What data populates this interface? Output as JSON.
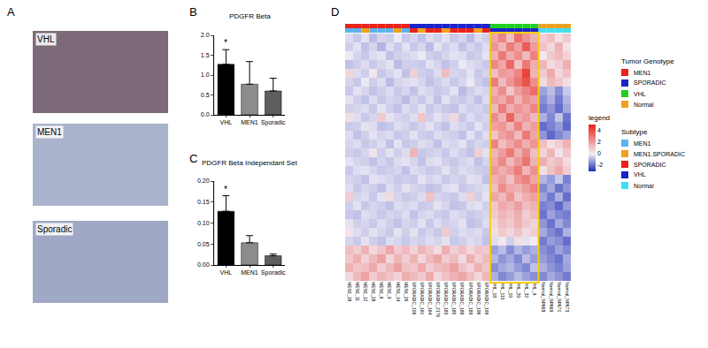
{
  "images": {
    "panel": "A",
    "labels": [
      "VHL",
      "MEN1",
      "Sporadic"
    ]
  },
  "chart_data": [
    {
      "type": "bar",
      "panel": "B",
      "title": "PDGFR Beta",
      "categories": [
        "VHL",
        "MEN1",
        "Sporadic"
      ],
      "values": [
        1.27,
        0.77,
        0.6
      ],
      "errors": [
        0.37,
        0.57,
        0.32
      ],
      "colors": [
        "#000000",
        "#8c8c8c",
        "#5e5e5e"
      ],
      "ylim": [
        0,
        2.0
      ],
      "yticks": [
        {
          "value": 0,
          "label": "0.0"
        },
        {
          "value": 0.5,
          "label": "0.5"
        },
        {
          "value": 1.0,
          "label": "1.0"
        },
        {
          "value": 1.5,
          "label": "1.5"
        },
        {
          "value": 2.0,
          "label": "2.0"
        }
      ],
      "grid": false,
      "annotations": [
        {
          "category": "VHL",
          "text": "*"
        }
      ]
    },
    {
      "type": "bar",
      "panel": "C",
      "title": "PDGFR Beta Independant Set",
      "categories": [
        "VHL",
        "MEN1",
        "Sporadic"
      ],
      "values": [
        0.128,
        0.053,
        0.022
      ],
      "errors": [
        0.037,
        0.017,
        0.004
      ],
      "colors": [
        "#000000",
        "#8c8c8c",
        "#5e5e5e"
      ],
      "ylim": [
        0,
        0.2
      ],
      "yticks": [
        {
          "value": 0,
          "label": "0.00"
        },
        {
          "value": 0.05,
          "label": "0.05"
        },
        {
          "value": 0.1,
          "label": "0.10"
        },
        {
          "value": 0.15,
          "label": "0.15"
        },
        {
          "value": 0.2,
          "label": "0.20"
        }
      ],
      "grid": false,
      "annotations": [
        {
          "category": "VHL",
          "text": "*"
        }
      ]
    },
    {
      "type": "heatmap",
      "panel": "D",
      "columns": [
        "MEN1_18",
        "MEN1_11",
        "MEN1_12",
        "MEN1_28",
        "MEN1_6",
        "MEN1_9",
        "MEN1_14",
        "MEN1_26",
        "SPORADIC_156",
        "SPORADIC_160",
        "SPORADIC_164",
        "SPORADIC_2176",
        "SPORADIC_183",
        "SPORADIC_185",
        "SPORADIC_188",
        "SPORADIC_189",
        "SPORADIC_196",
        "SPORADIC_199",
        "VHL_18",
        "VHL_115",
        "VHL_19",
        "VHL_29",
        "VHL_32",
        "VHL_4",
        "Normal_NP668",
        "Normal_NP669",
        "Normal_NP670",
        "Normal_NP673"
      ],
      "column_groups": [
        {
          "title": "Tumor Genotype",
          "items": [
            {
              "name": "MEN1",
              "color": "#e8231a"
            },
            {
              "name": "SPORADIC",
              "color": "#1a23c8"
            },
            {
              "name": "VHL",
              "color": "#1fd11f"
            },
            {
              "name": "Normal",
              "color": "#f0a020"
            }
          ],
          "values": [
            "MEN1",
            "MEN1",
            "MEN1",
            "MEN1",
            "MEN1",
            "MEN1",
            "MEN1",
            "MEN1",
            "SPORADIC",
            "SPORADIC",
            "SPORADIC",
            "SPORADIC",
            "SPORADIC",
            "SPORADIC",
            "SPORADIC",
            "SPORADIC",
            "SPORADIC",
            "SPORADIC",
            "VHL",
            "VHL",
            "VHL",
            "VHL",
            "VHL",
            "VHL",
            "Normal",
            "Normal",
            "Normal",
            "Normal"
          ]
        },
        {
          "title": "Subtype",
          "items": [
            {
              "name": "MEN1",
              "color": "#5ab4f0"
            },
            {
              "name": "MEN1.SPORADIC",
              "color": "#f0a020"
            },
            {
              "name": "SPORADIC",
              "color": "#e8231a"
            },
            {
              "name": "VHL",
              "color": "#1a23c8"
            },
            {
              "name": "Normal",
              "color": "#40e0f0"
            }
          ],
          "values": [
            "MEN1",
            "MEN1",
            "MEN1.SPORADIC",
            "MEN1",
            "MEN1",
            "MEN1",
            "MEN1.SPORADIC",
            "MEN1",
            "SPORADIC",
            "MEN1.SPORADIC",
            "SPORADIC",
            "SPORADIC",
            "MEN1.SPORADIC",
            "SPORADIC",
            "SPORADIC",
            "SPORADIC",
            "MEN1.SPORADIC",
            "SPORADIC",
            "VHL",
            "VHL",
            "VHL",
            "VHL",
            "VHL",
            "VHL",
            "Normal",
            "Normal",
            "Normal",
            "Normal"
          ]
        }
      ],
      "highlight": "VHL",
      "colorbar": {
        "title": "legend",
        "range": [
          -3,
          5
        ],
        "ticks": [
          -2,
          0,
          2,
          4
        ]
      },
      "cells": [
        [
          -0.3,
          -0.6,
          -0.2,
          -0.8,
          -0.4,
          -0.5,
          -0.1,
          -0.6,
          -0.4,
          -0.7,
          -0.3,
          -0.5,
          -0.2,
          -0.6,
          -0.4,
          -0.8,
          -0.3,
          -0.5,
          1.8,
          2.6,
          1.2,
          3.1,
          2.2,
          1.5,
          0.8,
          1.2,
          0.4,
          0.9
        ],
        [
          -0.5,
          -0.2,
          -0.7,
          -0.4,
          -0.9,
          -0.3,
          -0.6,
          -0.2,
          -0.6,
          -0.4,
          -0.8,
          -0.2,
          -0.5,
          -0.3,
          -0.7,
          -0.4,
          -0.6,
          -0.3,
          2.2,
          1.4,
          2.8,
          1.9,
          3.6,
          2.0,
          1.1,
          0.6,
          1.5,
          0.3
        ],
        [
          -0.1,
          -0.4,
          -0.6,
          -0.3,
          -0.2,
          -0.7,
          -0.5,
          -0.4,
          -0.3,
          -0.1,
          -0.5,
          -0.6,
          -0.4,
          -0.2,
          -0.3,
          -0.6,
          -0.5,
          -0.2,
          1.5,
          2.9,
          1.7,
          2.4,
          1.3,
          2.7,
          0.2,
          0.9,
          1.3,
          0.7
        ],
        [
          -0.7,
          -0.5,
          -0.3,
          -0.6,
          -0.4,
          -0.2,
          -0.8,
          -0.5,
          -0.5,
          -0.6,
          -0.2,
          -0.4,
          -0.7,
          -0.5,
          -0.1,
          -0.3,
          -0.4,
          -0.6,
          2.5,
          1.8,
          3.3,
          1.1,
          2.9,
          1.6,
          1.4,
          0.5,
          0.8,
          1.6
        ],
        [
          0.6,
          -0.3,
          -0.5,
          0.2,
          -0.6,
          -0.4,
          -0.2,
          -0.7,
          0.8,
          -0.5,
          -0.6,
          -0.3,
          1.2,
          -0.4,
          -0.5,
          -0.2,
          -0.6,
          -0.4,
          1.2,
          2.1,
          1.9,
          2.6,
          4.2,
          1.4,
          0.9,
          1.7,
          0.6,
          1.1
        ],
        [
          -0.4,
          -0.6,
          -0.1,
          -0.5,
          -0.3,
          -0.8,
          -0.4,
          -0.3,
          -0.2,
          -0.4,
          -0.7,
          -0.5,
          -0.3,
          -0.6,
          -0.4,
          -0.1,
          -0.5,
          -0.7,
          2.8,
          1.3,
          2.2,
          3.0,
          3.8,
          2.4,
          0.5,
          1.3,
          1.0,
          0.4
        ],
        [
          -0.6,
          -0.2,
          -0.4,
          -0.7,
          -0.5,
          -0.3,
          -0.6,
          -0.4,
          -0.7,
          -0.3,
          -0.4,
          -0.6,
          -0.5,
          -0.2,
          -0.8,
          -0.5,
          -0.3,
          -0.4,
          1.6,
          2.4,
          1.0,
          2.0,
          2.6,
          3.2,
          -1.2,
          -0.8,
          -1.5,
          -0.6
        ],
        [
          -0.2,
          -0.5,
          -0.7,
          -0.3,
          -0.6,
          -0.4,
          -0.5,
          -0.8,
          -0.4,
          -0.6,
          -0.3,
          -0.7,
          -0.2,
          -0.5,
          -0.6,
          -0.4,
          -0.7,
          -0.3,
          2.0,
          1.7,
          2.5,
          1.4,
          2.3,
          1.9,
          -1.5,
          -1.0,
          -1.8,
          -0.9
        ],
        [
          -0.5,
          -0.4,
          -0.3,
          -0.6,
          -0.2,
          -0.5,
          -0.7,
          -0.3,
          -0.5,
          -0.2,
          -0.6,
          -0.4,
          -0.6,
          -0.7,
          -0.3,
          -0.5,
          -0.4,
          -0.6,
          1.3,
          2.8,
          1.6,
          2.2,
          1.8,
          2.6,
          -1.8,
          -1.4,
          -2.0,
          -1.1
        ],
        [
          0.4,
          -0.3,
          -0.6,
          -0.4,
          0.9,
          -0.2,
          -0.4,
          -0.5,
          -0.3,
          1.0,
          -0.5,
          -0.2,
          -0.4,
          0.6,
          -0.6,
          -0.3,
          -0.5,
          -0.4,
          2.4,
          1.5,
          3.4,
          1.7,
          2.1,
          1.3,
          -1.0,
          -1.6,
          -0.7,
          -1.9
        ],
        [
          -0.6,
          -0.5,
          -0.2,
          -0.3,
          -0.7,
          -0.6,
          -0.3,
          -0.4,
          -0.6,
          -0.4,
          -0.2,
          -0.5,
          -0.7,
          -0.3,
          -0.4,
          -0.6,
          -0.2,
          -0.5,
          1.9,
          2.2,
          1.4,
          2.7,
          1.5,
          2.0,
          -2.0,
          -1.7,
          -1.3,
          -2.1
        ],
        [
          -0.3,
          -0.7,
          -0.5,
          -0.2,
          -0.4,
          -0.3,
          -0.6,
          -0.5,
          -0.2,
          -0.5,
          -0.6,
          -0.3,
          -0.4,
          -0.5,
          -0.7,
          -0.2,
          -0.6,
          -0.3,
          1.1,
          1.9,
          2.3,
          1.3,
          2.9,
          1.8,
          -1.4,
          -2.1,
          -1.6,
          -1.2
        ],
        [
          -0.4,
          -0.3,
          -0.6,
          -0.5,
          -0.3,
          -0.7,
          -0.2,
          -0.6,
          -0.5,
          -0.3,
          -0.4,
          -0.7,
          -0.3,
          -0.4,
          -0.2,
          -0.6,
          -0.4,
          -0.5,
          2.6,
          1.2,
          1.8,
          2.4,
          1.6,
          2.2,
          1.2,
          0.4,
          0.8,
          1.5
        ],
        [
          -0.5,
          -0.6,
          -0.4,
          0.3,
          -0.5,
          -0.2,
          -0.5,
          -0.3,
          1.4,
          -0.6,
          -0.5,
          -0.4,
          -0.6,
          -0.3,
          -0.5,
          -0.7,
          0.8,
          -0.2,
          1.4,
          2.0,
          2.9,
          1.6,
          2.5,
          1.2,
          0.7,
          1.4,
          0.3,
          1.0
        ],
        [
          -0.2,
          -0.4,
          -0.5,
          -0.7,
          -0.4,
          -0.6,
          -0.3,
          -0.2,
          -0.4,
          -0.7,
          -0.3,
          -0.2,
          -0.5,
          -0.6,
          -0.4,
          -0.3,
          -0.7,
          -0.4,
          1.7,
          2.5,
          1.3,
          2.1,
          3.0,
          1.5,
          1.6,
          0.9,
          1.2,
          0.5
        ],
        [
          -0.6,
          -0.3,
          -0.2,
          -0.4,
          -0.6,
          -0.5,
          -0.4,
          -0.7,
          -0.3,
          -0.4,
          -0.6,
          -0.5,
          -0.2,
          -0.5,
          -0.3,
          -0.4,
          -0.5,
          -0.6,
          2.1,
          1.6,
          2.0,
          2.8,
          1.4,
          2.3,
          0.4,
          1.1,
          1.7,
          0.8
        ],
        [
          -0.4,
          -0.5,
          -0.7,
          -0.2,
          -0.3,
          -0.4,
          -0.6,
          -0.5,
          -0.6,
          -0.2,
          -0.4,
          -0.3,
          -0.6,
          -0.4,
          -0.5,
          -0.2,
          -0.3,
          -0.7,
          1.5,
          1.9,
          1.1,
          2.3,
          2.7,
          1.8,
          -0.9,
          -1.3,
          -0.6,
          -1.7
        ],
        [
          -0.3,
          -0.6,
          -0.4,
          -0.5,
          -0.7,
          -0.3,
          -0.5,
          -0.2,
          -0.4,
          -0.5,
          -0.7,
          -0.6,
          -0.3,
          -0.2,
          -0.6,
          -0.5,
          -0.4,
          -0.3,
          1.2,
          2.4,
          1.7,
          1.5,
          2.0,
          2.6,
          -1.6,
          -1.1,
          -1.9,
          -1.4
        ],
        [
          0.8,
          -0.4,
          -0.3,
          -0.6,
          -0.2,
          0.5,
          -0.4,
          -0.6,
          -0.5,
          -0.3,
          1.1,
          -0.4,
          -0.5,
          -0.6,
          -0.3,
          0.7,
          -0.5,
          -0.2,
          1.8,
          1.3,
          2.2,
          1.0,
          1.6,
          1.9,
          -1.2,
          -1.8,
          -1.0,
          -2.0
        ],
        [
          -0.5,
          -0.2,
          -0.6,
          -0.4,
          -0.5,
          -0.7,
          -0.3,
          -0.4,
          -0.3,
          -0.6,
          -0.5,
          -0.2,
          -0.4,
          -0.7,
          -0.6,
          -0.3,
          -0.2,
          -0.5,
          1.0,
          1.7,
          1.4,
          2.0,
          1.2,
          1.5,
          -1.7,
          -1.5,
          -2.1,
          -1.3
        ],
        [
          -0.6,
          -0.7,
          -0.3,
          -0.4,
          -0.6,
          -0.4,
          -0.5,
          -0.3,
          -0.7,
          -0.4,
          -0.3,
          -0.5,
          -0.6,
          -0.3,
          -0.4,
          -0.6,
          -0.5,
          -0.4,
          0.9,
          1.4,
          1.1,
          1.6,
          0.8,
          1.3,
          -1.9,
          -1.2,
          -1.6,
          -1.8
        ],
        [
          -0.2,
          -0.5,
          -0.4,
          -0.6,
          -0.3,
          -0.5,
          -0.7,
          -0.4,
          -0.5,
          -0.2,
          -0.6,
          -0.3,
          -0.5,
          -0.4,
          -0.2,
          -0.7,
          -0.6,
          -0.3,
          0.6,
          1.2,
          0.9,
          1.5,
          1.0,
          0.7,
          -1.4,
          -1.9,
          -1.1,
          -1.6
        ],
        [
          0.3,
          -0.3,
          -0.5,
          -0.2,
          -0.4,
          -0.6,
          -0.2,
          -0.5,
          -0.2,
          -0.6,
          -0.4,
          -0.6,
          0.9,
          -0.5,
          -0.3,
          -0.4,
          -0.3,
          -0.6,
          0.4,
          0.9,
          0.6,
          1.1,
          0.5,
          0.8,
          -1.1,
          -1.6,
          -1.9,
          -1.0
        ],
        [
          -0.4,
          -0.6,
          -0.2,
          -0.5,
          -0.7,
          -0.3,
          -0.4,
          -0.6,
          -0.4,
          -0.5,
          -0.3,
          -0.4,
          -0.2,
          -0.6,
          -0.5,
          -0.3,
          -0.4,
          -0.7,
          -0.3,
          0.2,
          -0.5,
          0.4,
          -0.2,
          0.1,
          -1.8,
          -1.3,
          -1.5,
          -2.0
        ],
        [
          1.2,
          0.8,
          1.5,
          0.6,
          1.0,
          1.8,
          0.9,
          1.3,
          0.7,
          1.4,
          1.0,
          0.5,
          1.6,
          0.8,
          1.2,
          0.6,
          1.1,
          0.9,
          -1.2,
          -0.8,
          -1.5,
          -0.9,
          -1.3,
          -1.0,
          -1.5,
          -1.8,
          -1.2,
          -1.6
        ],
        [
          0.9,
          1.6,
          0.7,
          1.3,
          1.9,
          0.6,
          1.4,
          0.8,
          1.5,
          0.6,
          1.3,
          1.8,
          0.9,
          1.2,
          0.5,
          1.6,
          0.8,
          1.3,
          -0.9,
          -1.4,
          -1.1,
          -1.6,
          -0.8,
          -1.3,
          -1.3,
          -1.6,
          -1.9,
          -1.1
        ],
        [
          1.5,
          1.0,
          1.2,
          1.7,
          0.8,
          1.3,
          1.9,
          1.1,
          1.0,
          1.7,
          0.8,
          1.2,
          1.4,
          1.9,
          1.1,
          0.7,
          1.5,
          1.0,
          -1.5,
          -1.1,
          -0.9,
          -1.3,
          -1.6,
          -0.7,
          -1.0,
          -1.4,
          -1.7,
          -1.2
        ],
        [
          0.6,
          1.3,
          1.9,
          0.9,
          1.4,
          1.1,
          0.7,
          1.6,
          1.3,
          0.9,
          1.7,
          0.6,
          1.1,
          1.5,
          1.8,
          1.2,
          0.6,
          1.4,
          -1.0,
          -1.6,
          -1.3,
          -0.8,
          -1.2,
          -1.5,
          -1.6,
          -1.1,
          -1.4,
          -1.8
        ]
      ]
    }
  ]
}
